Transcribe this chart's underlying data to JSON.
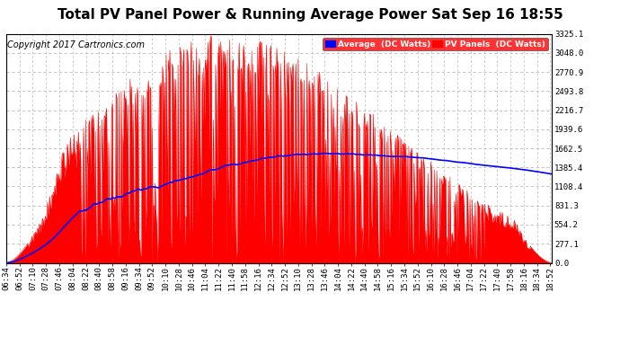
{
  "title": "Total PV Panel Power & Running Average Power Sat Sep 16 18:55",
  "copyright": "Copyright 2017 Cartronics.com",
  "ylabel_right_ticks": [
    0.0,
    277.1,
    554.2,
    831.3,
    1108.4,
    1385.4,
    1662.5,
    1939.6,
    2216.7,
    2493.8,
    2770.9,
    3048.0,
    3325.1
  ],
  "ymax": 3325.1,
  "ymin": 0.0,
  "background_color": "#ffffff",
  "plot_bg_color": "#ffffff",
  "grid_color": "#bbbbbb",
  "red_color": "#ff0000",
  "blue_color": "#0000ff",
  "title_color": "#000000",
  "legend_bg_color": "#ff0000",
  "legend_avg_label": "Average  (DC Watts)",
  "legend_pv_label": "PV Panels  (DC Watts)",
  "title_fontsize": 11,
  "tick_fontsize": 6.5,
  "copyright_fontsize": 7
}
